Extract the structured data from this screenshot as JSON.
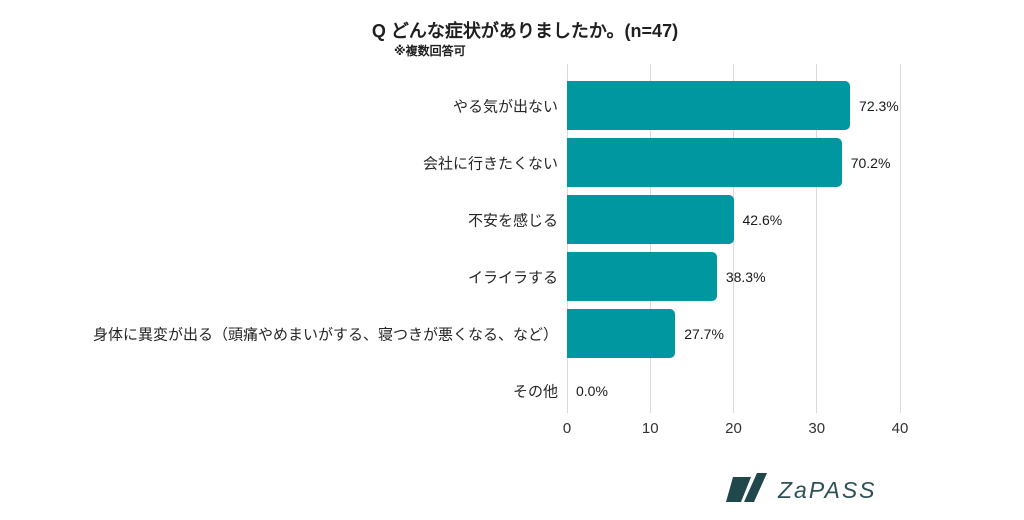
{
  "chart_data": {
    "type": "bar",
    "orientation": "horizontal",
    "title": "Q どんな症状がありましたか。(n=47)",
    "subtitle": "※複数回答可",
    "categories": [
      "やる気が出ない",
      "会社に行きたくない",
      "不安を感じる",
      "イライラする",
      "身体に異変が出る（頭痛やめまいがする、寝つきが悪くなる、など）",
      "その他"
    ],
    "values": [
      34,
      33,
      20,
      18,
      13,
      0
    ],
    "value_labels": [
      "72.3%",
      "70.2%",
      "42.6%",
      "38.3%",
      "27.7%",
      "0.0%"
    ],
    "x_ticks": [
      0,
      10,
      20,
      30,
      40
    ],
    "xlim": [
      0,
      40
    ],
    "grid": "vertical-gridlines",
    "legend": "none",
    "bar_color": "#0097A0",
    "gridline_color": "#D9D9D9"
  },
  "logo": {
    "text": "ZaPASS",
    "icon": "zapass-logo-mark",
    "icon_color": "#1F474C",
    "text_color": "#2D5156"
  }
}
